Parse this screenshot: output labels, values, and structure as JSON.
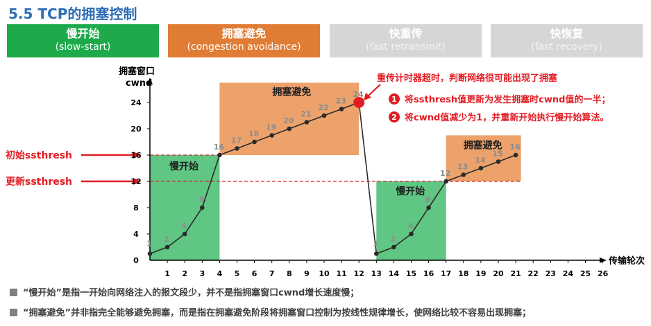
{
  "slide_title": "5.5 TCP的拥塞控制",
  "phases": [
    {
      "zh": "慢开始",
      "en": "(slow-start)"
    },
    {
      "zh": "拥塞避免",
      "en": "(congestion avoidance)"
    },
    {
      "zh": "快重传",
      "en": "(fast retransmit)"
    },
    {
      "zh": "快恢复",
      "en": "(fast recovery)"
    }
  ],
  "chart_data": {
    "type": "line",
    "ylabel_line1": "拥塞窗口",
    "ylabel_line2": "cwnd",
    "xlabel": "传输轮次",
    "ylim": [
      0,
      26
    ],
    "xlim": [
      0,
      26
    ],
    "y_ticks": [
      0,
      4,
      8,
      12,
      16,
      20,
      24
    ],
    "x_ticks": [
      1,
      2,
      3,
      4,
      5,
      6,
      7,
      8,
      9,
      10,
      11,
      12,
      13,
      14,
      15,
      16,
      17,
      18,
      19,
      20,
      21,
      22,
      23,
      24,
      25,
      26
    ],
    "x": [
      0,
      1,
      2,
      3,
      4,
      5,
      6,
      7,
      8,
      9,
      10,
      11,
      12,
      13,
      14,
      15,
      16,
      17,
      18,
      19,
      20,
      21
    ],
    "cwnd": [
      1,
      2,
      4,
      8,
      16,
      17,
      18,
      19,
      20,
      21,
      22,
      23,
      24,
      1,
      2,
      4,
      8,
      12,
      13,
      14,
      15,
      16
    ],
    "initial_ssthresh": 16,
    "updated_ssthresh": 12,
    "timeout_point": {
      "x": 12,
      "y": 24
    },
    "regions": [
      {
        "label": "慢开始",
        "x_range": [
          0,
          4
        ],
        "y_range": [
          0,
          16
        ],
        "color": "#5fc683"
      },
      {
        "label": "拥塞避免",
        "x_range": [
          4,
          12
        ],
        "y_range": [
          16,
          27
        ],
        "color": "#eda26b"
      },
      {
        "label": "慢开始",
        "x_range": [
          13,
          17
        ],
        "y_range": [
          0,
          12
        ],
        "color": "#5fc683"
      },
      {
        "label": "拥塞避免",
        "x_range": [
          17,
          21.3
        ],
        "y_range": [
          12,
          19
        ],
        "color": "#eda26b"
      }
    ],
    "annotations": {
      "initial_ssthresh_label": "初始ssthresh",
      "updated_ssthresh_label": "更新ssthresh",
      "timeout_title": "重传计时器超时，判断网络很可能出现了拥塞",
      "steps": [
        {
          "num": "1",
          "text": "将ssthresh值更新为发生拥塞时cwnd值的一半；"
        },
        {
          "num": "2",
          "text": "将cwnd值减少为1，并重新开始执行慢开始算法。"
        }
      ]
    },
    "colors": {
      "line": "#2b2b2b",
      "value_label": "#8c8c8c",
      "red": "#e31c23",
      "threshold": "#d62a2a"
    }
  },
  "notes": [
    "“慢开始”是指一开始向网络注入的报文段少，并不是指拥塞窗口cwnd增长速度慢；",
    "“拥塞避免”并非指完全能够避免拥塞，而是指在拥塞避免阶段将拥塞窗口控制为按线性规律增长，使网络比较不容易出现拥塞；"
  ]
}
